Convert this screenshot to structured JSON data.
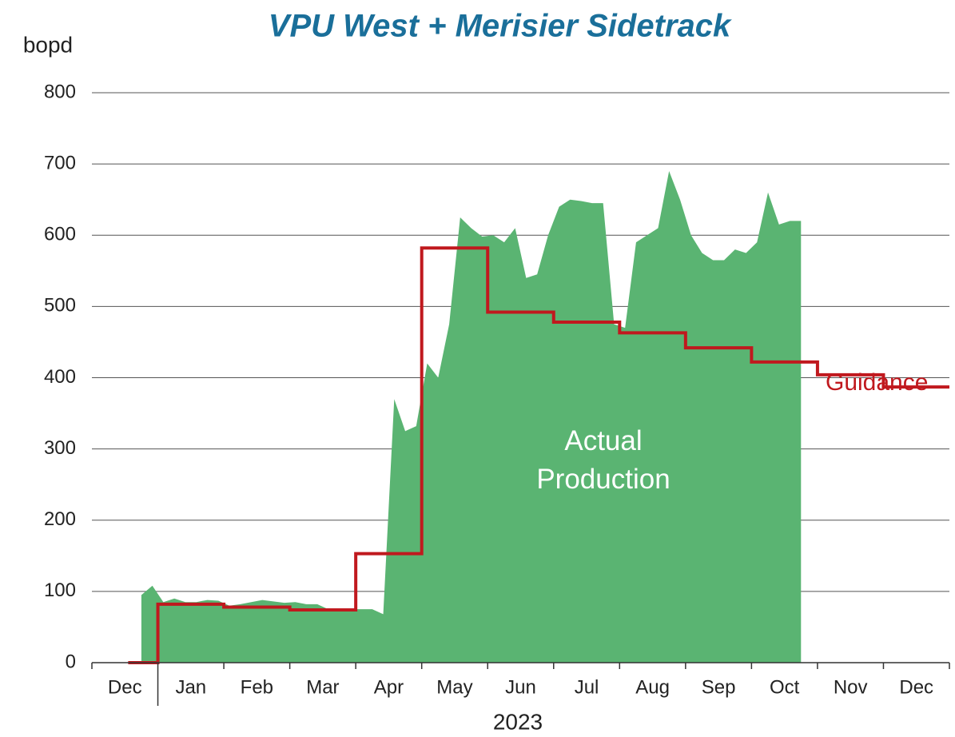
{
  "chart_data": {
    "type": "area-step",
    "title": "VPU West + Merisier Sidetrack",
    "ylabel": "bopd",
    "xlabel": "2023",
    "categories": [
      "Dec",
      "Jan",
      "Feb",
      "Mar",
      "Apr",
      "May",
      "Jun",
      "Jul",
      "Aug",
      "Sep",
      "Oct",
      "Nov",
      "Dec"
    ],
    "ylim": [
      0,
      800
    ],
    "yticks": [
      0,
      100,
      200,
      300,
      400,
      500,
      600,
      700,
      800
    ],
    "grid": true,
    "series": [
      {
        "name": "Actual Production",
        "color": "#5ab472",
        "kind": "area",
        "values": [
          [
            null,
            null,
            null,
            null,
            95,
            108
          ],
          [
            85,
            90,
            85,
            85,
            88,
            87
          ],
          [
            80,
            82,
            85,
            88,
            86,
            84
          ],
          [
            85,
            82,
            82,
            75,
            75,
            75
          ],
          [
            75,
            75,
            68,
            370,
            325,
            332
          ],
          [
            420,
            400,
            475,
            625,
            610,
            598
          ],
          [
            600,
            590,
            610,
            540,
            545,
            600
          ],
          [
            640,
            650,
            648,
            645,
            645,
            475
          ],
          [
            470,
            590,
            600,
            610,
            690,
            650
          ],
          [
            600,
            575,
            565,
            565,
            580,
            575
          ],
          [
            590,
            660,
            615,
            620,
            620,
            null
          ],
          [],
          []
        ]
      },
      {
        "name": "Guidance",
        "color": "#c0191e",
        "kind": "step",
        "values": [
          0,
          82,
          78,
          74,
          153,
          582,
          492,
          478,
          463,
          442,
          422,
          404,
          387
        ]
      }
    ]
  }
}
